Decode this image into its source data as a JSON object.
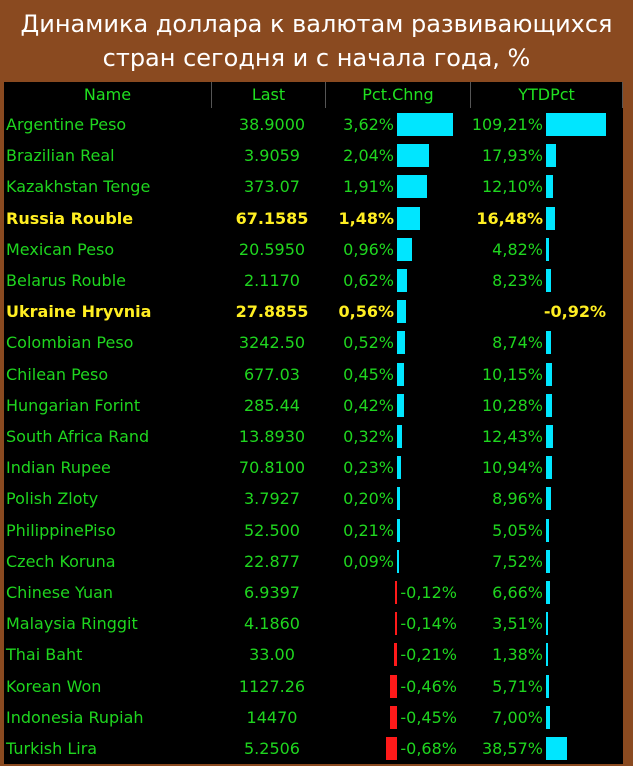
{
  "title": {
    "line1": "Динамика доллара к валютам развивающихся",
    "line2": "стран сегодня и с начала года, %"
  },
  "columns": [
    "Name",
    "Last",
    "Pct.Chng",
    "YTDPct"
  ],
  "colors": {
    "positive_bar": "#00e6ff",
    "negative_bar": "#ff1a1a",
    "text_normal": "#1fd61f",
    "text_highlight": "#ffee22",
    "background": "#8a4a20"
  },
  "chart_data": {
    "type": "table",
    "rows": [
      {
        "name": "Argentine Peso",
        "last": "38.9000",
        "pct": "3,62%",
        "pct_val": 3.62,
        "ytd": "109,21%",
        "ytd_val": 109.21,
        "highlight": false
      },
      {
        "name": "Brazilian Real",
        "last": "3.9059",
        "pct": "2,04%",
        "pct_val": 2.04,
        "ytd": "17,93%",
        "ytd_val": 17.93,
        "highlight": false
      },
      {
        "name": "Kazakhstan Tenge",
        "last": "373.07",
        "pct": "1,91%",
        "pct_val": 1.91,
        "ytd": "12,10%",
        "ytd_val": 12.1,
        "highlight": false
      },
      {
        "name": "Russia Rouble",
        "last": "67.1585",
        "pct": "1,48%",
        "pct_val": 1.48,
        "ytd": "16,48%",
        "ytd_val": 16.48,
        "highlight": true
      },
      {
        "name": "Mexican Peso",
        "last": "20.5950",
        "pct": "0,96%",
        "pct_val": 0.96,
        "ytd": "4,82%",
        "ytd_val": 4.82,
        "highlight": false
      },
      {
        "name": "Belarus Rouble",
        "last": "2.1170",
        "pct": "0,62%",
        "pct_val": 0.62,
        "ytd": "8,23%",
        "ytd_val": 8.23,
        "highlight": false
      },
      {
        "name": "Ukraine Hryvnia",
        "last": "27.8855",
        "pct": "0,56%",
        "pct_val": 0.56,
        "ytd": "-0,92%",
        "ytd_val": -0.92,
        "highlight": true
      },
      {
        "name": "Colombian Peso",
        "last": "3242.50",
        "pct": "0,52%",
        "pct_val": 0.52,
        "ytd": "8,74%",
        "ytd_val": 8.74,
        "highlight": false
      },
      {
        "name": "Chilean Peso",
        "last": "677.03",
        "pct": "0,45%",
        "pct_val": 0.45,
        "ytd": "10,15%",
        "ytd_val": 10.15,
        "highlight": false
      },
      {
        "name": "Hungarian Forint",
        "last": "285.44",
        "pct": "0,42%",
        "pct_val": 0.42,
        "ytd": "10,28%",
        "ytd_val": 10.28,
        "highlight": false
      },
      {
        "name": "South Africa Rand",
        "last": "13.8930",
        "pct": "0,32%",
        "pct_val": 0.32,
        "ytd": "12,43%",
        "ytd_val": 12.43,
        "highlight": false
      },
      {
        "name": "Indian Rupee",
        "last": "70.8100",
        "pct": "0,23%",
        "pct_val": 0.23,
        "ytd": "10,94%",
        "ytd_val": 10.94,
        "highlight": false
      },
      {
        "name": "Polish Zloty",
        "last": "3.7927",
        "pct": "0,20%",
        "pct_val": 0.2,
        "ytd": "8,96%",
        "ytd_val": 8.96,
        "highlight": false
      },
      {
        "name": "PhilippinePiso",
        "last": "52.500",
        "pct": "0,21%",
        "pct_val": 0.21,
        "ytd": "5,05%",
        "ytd_val": 5.05,
        "highlight": false
      },
      {
        "name": "Czech Koruna",
        "last": "22.877",
        "pct": "0,09%",
        "pct_val": 0.09,
        "ytd": "7,52%",
        "ytd_val": 7.52,
        "highlight": false
      },
      {
        "name": "Chinese Yuan",
        "last": "6.9397",
        "pct": "-0,12%",
        "pct_val": -0.12,
        "ytd": "6,66%",
        "ytd_val": 6.66,
        "highlight": false
      },
      {
        "name": "Malaysia Ringgit",
        "last": "4.1860",
        "pct": "-0,14%",
        "pct_val": -0.14,
        "ytd": "3,51%",
        "ytd_val": 3.51,
        "highlight": false
      },
      {
        "name": "Thai Baht",
        "last": "33.00",
        "pct": "-0,21%",
        "pct_val": -0.21,
        "ytd": "1,38%",
        "ytd_val": 1.38,
        "highlight": false
      },
      {
        "name": "Korean Won",
        "last": "1127.26",
        "pct": "-0,46%",
        "pct_val": -0.46,
        "ytd": "5,71%",
        "ytd_val": 5.71,
        "highlight": false
      },
      {
        "name": "Indonesia Rupiah",
        "last": "14470",
        "pct": "-0,45%",
        "pct_val": -0.45,
        "ytd": "7,00%",
        "ytd_val": 7.0,
        "highlight": false
      },
      {
        "name": "Turkish Lira",
        "last": "5.2506",
        "pct": "-0,68%",
        "pct_val": -0.68,
        "ytd": "38,57%",
        "ytd_val": 38.57,
        "highlight": false
      }
    ]
  }
}
